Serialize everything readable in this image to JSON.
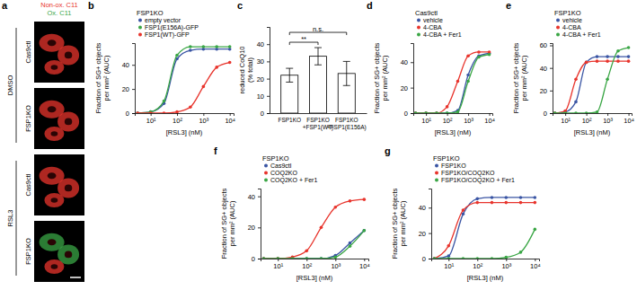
{
  "chart_data": [
    {
      "type": "image",
      "panel": "a",
      "channels": [
        {
          "name": "Non-ox. C11",
          "color": "#e8342c"
        },
        {
          "name": "Ox. C11",
          "color": "#3aa645"
        }
      ],
      "groups": [
        "DMSO",
        "RSL3"
      ],
      "rows": [
        "Cas9ctl",
        "FSP1KO",
        "Cas9ctl",
        "FSP1KO"
      ]
    },
    {
      "type": "line",
      "panel": "b",
      "legend_title": "FSP1KO",
      "marker": "circle",
      "log": "x",
      "x_label": "[RSL3] (nM)",
      "y_label": [
        "Fraction of SG+ objects",
        "per mm² (AUC)"
      ],
      "x": [
        3.2,
        10,
        32,
        100,
        320,
        1000,
        3200,
        10000
      ],
      "xlim": [
        2.5,
        14000
      ],
      "xticks": [
        {
          "value": 10,
          "label": "10¹"
        },
        {
          "value": 100,
          "label": "10²"
        },
        {
          "value": 1000,
          "label": "10³"
        },
        {
          "value": 10000,
          "label": "10⁴"
        }
      ],
      "ylim": [
        0,
        58
      ],
      "yticks": [
        0,
        20,
        40
      ],
      "series": [
        {
          "name": "empty vector",
          "color": "#3a55a4",
          "values": [
            0,
            1,
            8,
            45,
            52,
            53,
            53,
            53
          ]
        },
        {
          "name": "FSP1(E156A)-GFP",
          "color": "#3aa645",
          "values": [
            0,
            1,
            10,
            48,
            55,
            55,
            55,
            55
          ]
        },
        {
          "name": "FSP1(WT)-GFP",
          "color": "#e8342c",
          "values": [
            0,
            0,
            0,
            1,
            5,
            22,
            38,
            42
          ]
        }
      ]
    },
    {
      "type": "bar",
      "panel": "c",
      "y_label": [
        "reduced CoQ10",
        "(% total)"
      ],
      "categories": [
        "FSP1KO",
        "FSP1KO\n+FSP1(WT)",
        "FSP1KO\n+FSP1(E156A)"
      ],
      "values": [
        22,
        33,
        23
      ],
      "errors": [
        4,
        5,
        7
      ],
      "color": "#ffffff",
      "ylim": [
        0,
        50
      ],
      "yticks": [
        0,
        10,
        20,
        30,
        40
      ],
      "annotations": [
        {
          "text": "**",
          "between": [
            0,
            1
          ]
        },
        {
          "text": "n.s.",
          "between": [
            0,
            2
          ]
        }
      ]
    },
    {
      "type": "line",
      "panel": "d",
      "legend_title": "Cas9ctl",
      "marker": "circle",
      "log": "x",
      "x_label": "[RSL3] (nM)",
      "y_label": [
        "Fraction of SG+ objects",
        "per mm² (AUC)"
      ],
      "x": [
        3.2,
        10,
        32,
        100,
        320,
        1000,
        3200,
        10000
      ],
      "xlim": [
        2.5,
        14000
      ],
      "xticks": [
        {
          "value": 10,
          "label": "10¹"
        },
        {
          "value": 100,
          "label": "10²"
        },
        {
          "value": 1000,
          "label": "10³"
        },
        {
          "value": 10000,
          "label": "10⁴"
        }
      ],
      "ylim": [
        0,
        55
      ],
      "yticks": [
        0,
        20,
        40
      ],
      "series": [
        {
          "name": "vehicle",
          "color": "#3a55a4",
          "values": [
            0,
            0,
            0,
            0,
            2,
            30,
            45,
            47
          ]
        },
        {
          "name": "4-CBA",
          "color": "#e8342c",
          "values": [
            0,
            0,
            0,
            5,
            25,
            45,
            48,
            48
          ]
        },
        {
          "name": "4-CBA + Fer1",
          "color": "#3aa645",
          "values": [
            0,
            0,
            0,
            0,
            1,
            25,
            44,
            46
          ]
        }
      ]
    },
    {
      "type": "line",
      "panel": "e",
      "legend_title": "FSP1KO",
      "marker": "circle",
      "log": "x",
      "x_label": "[RSL3] (nM)",
      "y_label": [
        "Fraction of SG+ objects",
        "per mm² (AUC)"
      ],
      "x": [
        3.2,
        10,
        32,
        100,
        320,
        1000,
        3200,
        10000
      ],
      "xlim": [
        2.5,
        14000
      ],
      "xticks": [
        {
          "value": 10,
          "label": "10¹"
        },
        {
          "value": 100,
          "label": "10²"
        },
        {
          "value": 1000,
          "label": "10³"
        },
        {
          "value": 10000,
          "label": "10⁴"
        }
      ],
      "ylim": [
        0,
        62
      ],
      "yticks": [
        0,
        20,
        40,
        60
      ],
      "series": [
        {
          "name": "vehicle",
          "color": "#3a55a4",
          "values": [
            0,
            1,
            10,
            45,
            50,
            50,
            50,
            50
          ]
        },
        {
          "name": "4-CBA",
          "color": "#e8342c",
          "values": [
            0,
            2,
            30,
            45,
            46,
            46,
            46,
            46
          ]
        },
        {
          "name": "4-CBA + Fer1",
          "color": "#3aa645",
          "values": [
            0,
            0,
            0,
            0,
            1,
            30,
            55,
            58
          ]
        }
      ]
    },
    {
      "type": "line",
      "panel": "f",
      "legend_title": "FSP1KO",
      "marker": "circle",
      "log": "x",
      "x_label": "[RSL3] (nM)",
      "y_label": [
        "Fraction of SG+ objects",
        "per mm² (AUC)"
      ],
      "x": [
        3.2,
        10,
        32,
        100,
        320,
        1000,
        3200,
        10000
      ],
      "xlim": [
        2.5,
        14000
      ],
      "xticks": [
        {
          "value": 10,
          "label": "10¹"
        },
        {
          "value": 100,
          "label": "10²"
        },
        {
          "value": 1000,
          "label": "10³"
        },
        {
          "value": 10000,
          "label": "10⁴"
        }
      ],
      "ylim": [
        0,
        45
      ],
      "yticks": [
        0,
        20,
        40
      ],
      "series": [
        {
          "name": "Cas9ctl",
          "color": "#3a55a4",
          "values": [
            0,
            0,
            0,
            0,
            0,
            2,
            10,
            18
          ]
        },
        {
          "name": "COQ2KO",
          "color": "#e8342c",
          "values": [
            0,
            0,
            1,
            5,
            20,
            33,
            37,
            38
          ]
        },
        {
          "name": "COQ2KO + Fer1",
          "color": "#3aa645",
          "values": [
            0,
            0,
            0,
            0,
            0,
            1,
            8,
            18
          ]
        }
      ]
    },
    {
      "type": "line",
      "panel": "g",
      "legend_title": "FSP1KO",
      "marker": "circle",
      "log": "x",
      "x_label": "[RSL3] (nM)",
      "y_label": [
        "Fraction of SG+ objects",
        "per mm² (AUC)"
      ],
      "x": [
        3.2,
        10,
        32,
        100,
        320,
        1000,
        3200,
        10000
      ],
      "xlim": [
        2.5,
        14000
      ],
      "xticks": [
        {
          "value": 10,
          "label": "10¹"
        },
        {
          "value": 100,
          "label": "10²"
        },
        {
          "value": 1000,
          "label": "10³"
        },
        {
          "value": 10000,
          "label": "10⁴"
        }
      ],
      "ylim": [
        0,
        55
      ],
      "yticks": [
        0,
        20,
        40
      ],
      "series": [
        {
          "name": "FSP1KO",
          "color": "#3a55a4",
          "values": [
            0,
            2,
            35,
            47,
            48,
            48,
            48,
            48
          ]
        },
        {
          "name": "FSP1KO/COQ2KO",
          "color": "#e8342c",
          "values": [
            0,
            10,
            38,
            44,
            44,
            44,
            44,
            44
          ]
        },
        {
          "name": "FSP1KO/COQ2KO + Fer1",
          "color": "#3aa645",
          "values": [
            0,
            0,
            0,
            0,
            0,
            1,
            5,
            23
          ]
        }
      ]
    }
  ]
}
